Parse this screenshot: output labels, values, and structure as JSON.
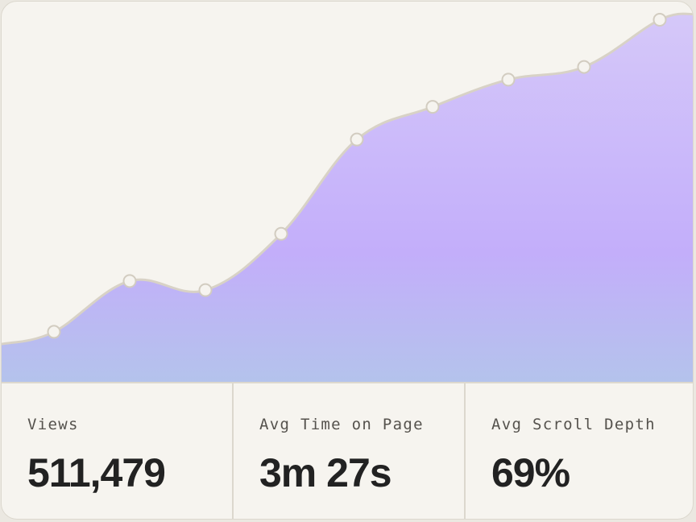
{
  "chart_data": {
    "type": "area",
    "x": [
      1,
      2,
      3,
      4,
      5,
      6,
      7,
      8,
      9
    ],
    "series": [
      {
        "values": [
          9,
          23,
          20.5,
          36,
          62,
          71,
          78.5,
          82,
          95
        ]
      }
    ],
    "ylim": [
      -5,
      100
    ],
    "grid": false,
    "legend": "none",
    "colors": {
      "fill_top": "#d5c8f9",
      "fill_mid": "#c3aefa",
      "fill_bottom": "#b4c3ec",
      "line": "#d8d2c6",
      "point_fill": "#f6f4ef",
      "point_stroke": "#d2ccc0"
    }
  },
  "stats": [
    {
      "label": "Views",
      "value": "511,479"
    },
    {
      "label": "Avg Time on Page",
      "value": "3m 27s"
    },
    {
      "label": "Avg Scroll Depth",
      "value": "69%"
    }
  ]
}
